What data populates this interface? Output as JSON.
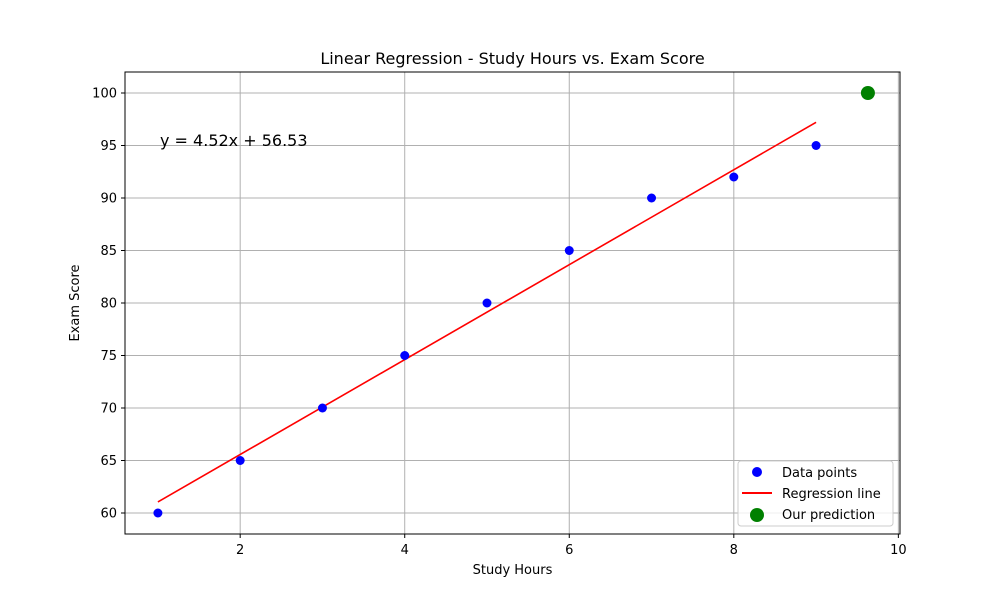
{
  "chart_data": {
    "type": "scatter",
    "title": "Linear Regression - Study Hours vs. Exam Score",
    "xlabel": "Study Hours",
    "ylabel": "Exam Score",
    "xlim": [
      0.6,
      10.02
    ],
    "ylim": [
      58.0,
      102.0
    ],
    "xticks": [
      2,
      4,
      6,
      8,
      10
    ],
    "yticks": [
      60,
      65,
      70,
      75,
      80,
      85,
      90,
      95,
      100
    ],
    "grid": true,
    "legend_position": "lower-right",
    "equation": "y = 4.52x + 56.53",
    "series": [
      {
        "name": "Data points",
        "kind": "scatter",
        "color": "#0000ff",
        "points": [
          {
            "x": 1,
            "y": 60
          },
          {
            "x": 2,
            "y": 65
          },
          {
            "x": 3,
            "y": 70
          },
          {
            "x": 4,
            "y": 75
          },
          {
            "x": 5,
            "y": 80
          },
          {
            "x": 6,
            "y": 85
          },
          {
            "x": 7,
            "y": 90
          },
          {
            "x": 8,
            "y": 92
          },
          {
            "x": 9,
            "y": 95
          }
        ]
      },
      {
        "name": "Regression line",
        "kind": "line",
        "color": "#ff0000",
        "slope": 4.52,
        "intercept": 56.53,
        "x_range": [
          1,
          9
        ]
      },
      {
        "name": "Our prediction",
        "kind": "scatter",
        "color": "#008000",
        "points": [
          {
            "x": 9.63,
            "y": 100
          }
        ]
      }
    ]
  }
}
